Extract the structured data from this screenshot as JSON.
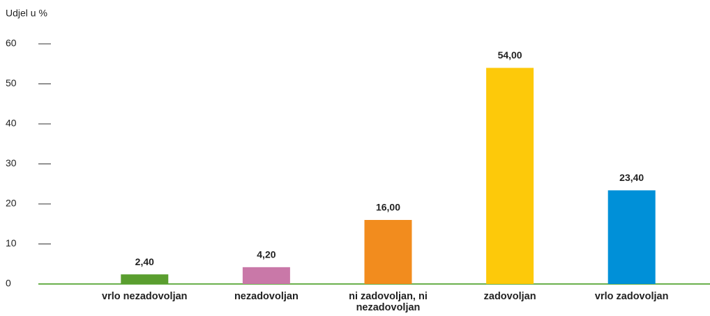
{
  "chart_data": {
    "type": "bar",
    "y_label": "Udjel u %",
    "categories": [
      "vrlo nezadovoljan",
      "nezadovoljan",
      "ni zadovoljan, ni nezadovoljan",
      "zadovoljan",
      "vrlo zadovoljan"
    ],
    "values": [
      2.4,
      4.2,
      16,
      54,
      23.4
    ],
    "value_labels": [
      "2,40",
      "4,20",
      "16,00",
      "54,00",
      "23,40"
    ],
    "colors": [
      "#5a9e2f",
      "#c978a8",
      "#f28c1e",
      "#fdc90a",
      "#0090d8"
    ],
    "baseline_color": "#6ab04c",
    "ylim": [
      0,
      60
    ],
    "yticks": [
      0,
      10,
      20,
      30,
      40,
      50,
      60
    ]
  }
}
